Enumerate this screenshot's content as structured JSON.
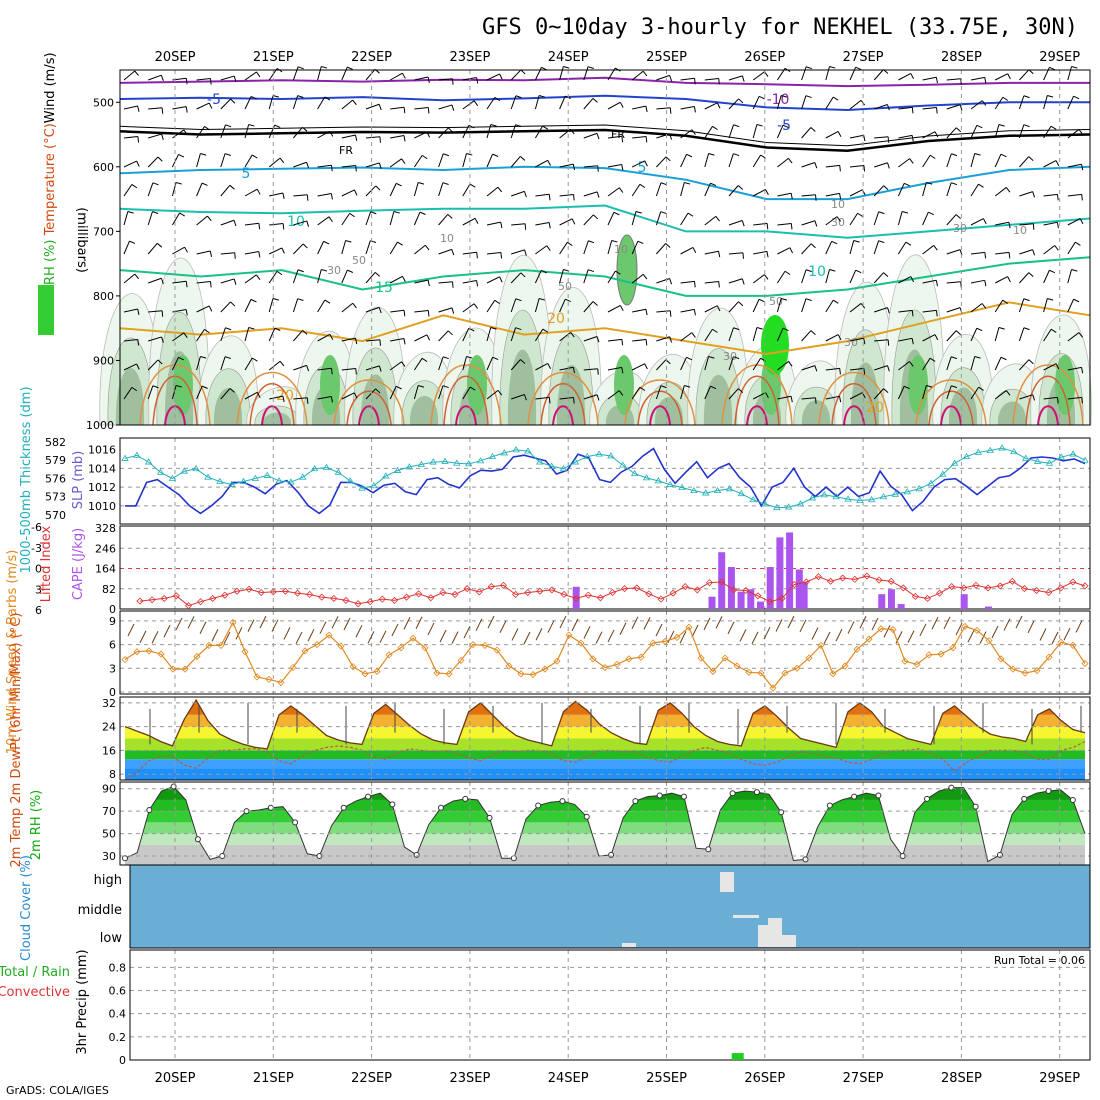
{
  "title": "GFS 0~10day 3-hourly for NEKHEL (33.75E, 30N)",
  "credit": "GrADS: COLA/IGES",
  "run_total_label": "Run Total = 0.06",
  "dates": [
    "20SEP",
    "21SEP",
    "22SEP",
    "23SEP",
    "24SEP",
    "25SEP",
    "26SEP",
    "27SEP",
    "28SEP",
    "29SEP"
  ],
  "colors": {
    "slp": "#2233cc",
    "thickness": "#22b0b8",
    "lifted": "#dd3333",
    "cape": "#aa55ee",
    "wind": "#e08a20",
    "rh": "#11aa11",
    "cloud": "#6aaed6",
    "cloudwhite": "#e6e6e6",
    "precip_green": "#22cc22",
    "purple_contour": "#8a22aa"
  },
  "chart_data": [
    {
      "id": "pressure_panel",
      "type": "contour",
      "yaxis_label_parts": [
        "RH (%)",
        "Temperature (°C)",
        "Wind (m/s)"
      ],
      "ylabel": "(millibars)",
      "yticks": [
        500,
        600,
        700,
        800,
        900,
        1000
      ],
      "ylim": [
        1000,
        450
      ],
      "temperature_contours": [
        {
          "label": "-10",
          "level": -10,
          "pressure": [
            470,
            468,
            466,
            468,
            465,
            466,
            462,
            470,
            472,
            475,
            473,
            470,
            470
          ]
        },
        {
          "label": "-5",
          "level": -5,
          "pressure": [
            495,
            493,
            495,
            492,
            497,
            494,
            490,
            495,
            508,
            512,
            505,
            500,
            500
          ]
        },
        {
          "label": "FR",
          "level": 0,
          "pressure": [
            545,
            550,
            548,
            546,
            547,
            545,
            543,
            552,
            570,
            575,
            560,
            552,
            550
          ]
        },
        {
          "label": "5",
          "level": 5,
          "pressure": [
            610,
            605,
            603,
            601,
            605,
            600,
            602,
            620,
            650,
            650,
            625,
            605,
            600
          ]
        },
        {
          "label": "10",
          "level": 10,
          "pressure": [
            665,
            670,
            672,
            668,
            665,
            665,
            660,
            700,
            700,
            710,
            700,
            690,
            680
          ]
        },
        {
          "label": "15",
          "level": 15,
          "pressure": [
            760,
            770,
            760,
            790,
            770,
            760,
            770,
            800,
            800,
            790,
            770,
            750,
            740
          ]
        },
        {
          "label": "20",
          "level": 20,
          "pressure": [
            850,
            860,
            850,
            870,
            830,
            860,
            850,
            870,
            890,
            870,
            840,
            810,
            830
          ]
        }
      ],
      "contour_labels": [
        "-10",
        "-5",
        "FR",
        "5",
        "10",
        "15",
        "20",
        "20",
        "20"
      ],
      "rh_labels": [
        "10",
        "30",
        "50",
        "10",
        "30",
        "30",
        "50",
        "50",
        "30",
        "10",
        "10",
        "30"
      ]
    },
    {
      "id": "slp_thickness",
      "type": "line",
      "left_label": "1000-500mb Thickness (dm)",
      "right_label": "SLP (mb)",
      "thickness_ticks": [
        570,
        573,
        576,
        579,
        582
      ],
      "slp_ticks": [
        1010,
        1012,
        1014,
        1016
      ],
      "ylim_slp": [
        1008.5,
        1016.8
      ],
      "series": [
        {
          "name": "SLP",
          "values": [
            1010,
            1010,
            1012.5,
            1012.8,
            1012,
            1011.2,
            1010,
            1009.2,
            1010,
            1011,
            1012.5,
            1012.5,
            1012,
            1011.3,
            1012.3,
            1012.7,
            1011.5,
            1010,
            1009.2,
            1010.1,
            1012.5,
            1012.5,
            1012.1,
            1011.4,
            1012.2,
            1012.4,
            1011.5,
            1011.2,
            1012.8,
            1013,
            1012.3,
            1011.9,
            1013.2,
            1013.8,
            1013.7,
            1013.9,
            1015.2,
            1015.4,
            1015.1,
            1014.8,
            1013.4,
            1013.8,
            1015.5,
            1015.1,
            1012.8,
            1012.5,
            1013.6,
            1014.2,
            1015.3,
            1016.1,
            1013.9,
            1012.4,
            1013.6,
            1014.7,
            1013,
            1014,
            1014.5,
            1013,
            1012,
            1010,
            1012,
            1012.5,
            1014,
            1012,
            1011,
            1012,
            1011,
            1012,
            1011,
            1011.4,
            1013.7,
            1012.1,
            1011.2,
            1009.5,
            1010.5,
            1012,
            1012.8,
            1012.9,
            1012.1,
            1011.2,
            1012.1,
            1013,
            1013.2,
            1014,
            1015.1,
            1015.2,
            1015.1,
            1014.8,
            1015,
            1014.5
          ]
        },
        {
          "name": "Thickness",
          "values": [
            579.3,
            579.8,
            578.7,
            577,
            576,
            577.2,
            577.6,
            576.2,
            575.5,
            575,
            575.5,
            576,
            576.5,
            575.6,
            575.4,
            576.2,
            577.6,
            577.8,
            577,
            575.6,
            574.4,
            574.8,
            576.4,
            577.3,
            577.9,
            578.3,
            578.7,
            578.8,
            578.5,
            578.4,
            578.9,
            579.6,
            580.2,
            580.7,
            580.5,
            578.7,
            578,
            577.6,
            578.7,
            579.6,
            580,
            579.7,
            578.2,
            576.8,
            576.1,
            575.6,
            575,
            574.5,
            574,
            573.6,
            574,
            574.3,
            573.5,
            572.5,
            571.8,
            571.2,
            571.3,
            571.8,
            572.8,
            573.3,
            573,
            572.6,
            572.4,
            572.5,
            573,
            573.4,
            573.8,
            574.3,
            575.2,
            576.7,
            578.5,
            579.6,
            580.3,
            580.6,
            581,
            580.4,
            579.3,
            578.8,
            578.5,
            579.5,
            580,
            579
          ]
        }
      ]
    },
    {
      "id": "lifted_cape",
      "type": "bar_line",
      "left_label": "Lifted Index",
      "right_label": "CAPE (J/kg)",
      "li_ticks": [
        "-6",
        "-3",
        "0",
        "3",
        "6"
      ],
      "cape_ticks": [
        0,
        82,
        164,
        246,
        328
      ],
      "cape_ylim": [
        0,
        328
      ],
      "li_ylim": [
        6,
        -6
      ],
      "cape_bars": [
        {
          "x": 4.6,
          "value": 90
        },
        {
          "x": 6.0,
          "value": 50
        },
        {
          "x": 6.1,
          "value": 230
        },
        {
          "x": 6.2,
          "value": 170
        },
        {
          "x": 6.3,
          "value": 70
        },
        {
          "x": 6.4,
          "value": 80
        },
        {
          "x": 6.5,
          "value": 30
        },
        {
          "x": 6.6,
          "value": 170
        },
        {
          "x": 6.7,
          "value": 290
        },
        {
          "x": 6.8,
          "value": 310
        },
        {
          "x": 6.9,
          "value": 160
        },
        {
          "x": 6.95,
          "value": 110
        },
        {
          "x": 7.75,
          "value": 60
        },
        {
          "x": 7.85,
          "value": 80
        },
        {
          "x": 7.95,
          "value": 20
        },
        {
          "x": 8.6,
          "value": 60
        },
        {
          "x": 8.85,
          "value": 10
        }
      ],
      "lifted_index": [
        5.1,
        4.9,
        4.7,
        4.3,
        5.8,
        5.2,
        4.7,
        4.2,
        3.6,
        3.3,
        3.8,
        3.7,
        3.6,
        3.9,
        4.1,
        4.5,
        4.7,
        5,
        5.5,
        5.2,
        4.8,
        5,
        4.5,
        4,
        4.6,
        3.8,
        4.1,
        3.2,
        3.7,
        2.9,
        2.7,
        4.1,
        3.8,
        3.6,
        3.4,
        4.1,
        4.7,
        4.2,
        4.6,
        3.8,
        3.2,
        3.1,
        4,
        4.8,
        3.9,
        2.9,
        3.4,
        2.3,
        2.2,
        3.4,
        3.5,
        4.3,
        5.2,
        4.7,
        2.6,
        2.2,
        1.4,
        2.1,
        1.6,
        1.8,
        1.3,
        1.9,
        2.1,
        3.1,
        4.4,
        4.7,
        3.9,
        2.9,
        3.1,
        2.7,
        3.1,
        2.8,
        2.1,
        3.2,
        3.5,
        3.8,
        3.1,
        2.2,
        2.8
      ]
    },
    {
      "id": "wind",
      "type": "line",
      "ylabel": "10m Wind Speed & Barbs (m/s)",
      "yticks": [
        0,
        3,
        6,
        9
      ],
      "ylim": [
        0,
        10
      ],
      "values": [
        4.1,
        5.1,
        5.2,
        4.8,
        2.9,
        2.9,
        4.5,
        5.9,
        5.9,
        8.8,
        5.1,
        1.9,
        1.6,
        1.2,
        3.1,
        5.2,
        6,
        7.2,
        5.8,
        3.2,
        2.3,
        2.6,
        4.7,
        5.6,
        6.8,
        5.6,
        2.4,
        2.3,
        4,
        6,
        5.9,
        5.3,
        3.3,
        2.3,
        2.2,
        2.9,
        3.9,
        7.2,
        6.2,
        4.2,
        3.1,
        3.5,
        4.2,
        4.4,
        6.2,
        6.4,
        6.9,
        8.2,
        4.3,
        2.6,
        4.3,
        3.3,
        2.5,
        2.4,
        0.5,
        2.4,
        3,
        4.3,
        5.9,
        2.3,
        3.3,
        5.4,
        6.7,
        8,
        7.9,
        3.9,
        3.5,
        4.7,
        4.8,
        5.6,
        8.3,
        7.8,
        6.5,
        4.2,
        2.9,
        2.4,
        2.7,
        4.4,
        6.3,
        5.9,
        3.6
      ]
    },
    {
      "id": "temperature",
      "type": "area_line",
      "ylabel": "2m Temp 2m DewPt (6hr Min/Max) (°C)",
      "yticks": [
        8,
        16,
        24,
        32
      ],
      "ylim": [
        6,
        34
      ],
      "temp_values": [
        24,
        22.5,
        21,
        19,
        17.5,
        26.5,
        33,
        26,
        21.5,
        19.5,
        18,
        17,
        16.5,
        28,
        31,
        28,
        24.5,
        21,
        19.5,
        18.5,
        18,
        28.5,
        31.5,
        28,
        24.5,
        21.5,
        19.5,
        18.5,
        18,
        29,
        32,
        28,
        24,
        21,
        19.5,
        18.5,
        17.5,
        29,
        32.5,
        29.5,
        25,
        22,
        20,
        18.5,
        18,
        29.5,
        32,
        28.5,
        24,
        21,
        19,
        18,
        17.5,
        28.5,
        31,
        27.5,
        23.5,
        20,
        19,
        18,
        17,
        29,
        32,
        29,
        24,
        22,
        20,
        19,
        18,
        28.5,
        31,
        27.5,
        24,
        21.5,
        20.5,
        20,
        19,
        28,
        30,
        26,
        23,
        22
      ],
      "dew_values": [
        6,
        8.5,
        12.5,
        14,
        14,
        11,
        10,
        13.5,
        16,
        16,
        16.5,
        16.5,
        15.5,
        12.5,
        11.5,
        14,
        16,
        17,
        17.5,
        17,
        16,
        14,
        13,
        15,
        16.5,
        16,
        15.5,
        16,
        15,
        13.5,
        12.5,
        14.5,
        16,
        15.5,
        16,
        16,
        15,
        12.5,
        12,
        14,
        16,
        16,
        15.5,
        15.5,
        14,
        12.5,
        12,
        14,
        16,
        17,
        16,
        15,
        13,
        11.5,
        11,
        12,
        14,
        15.5,
        15,
        14,
        13.5,
        12,
        11.5,
        13,
        15,
        16,
        16,
        16.5,
        15,
        13,
        9,
        12,
        14,
        16,
        16,
        16,
        15,
        13,
        13,
        16,
        17,
        19
      ]
    },
    {
      "id": "rh",
      "type": "area",
      "ylabel": "2m RH (%)",
      "yticks": [
        30,
        50,
        70,
        90
      ],
      "ylim": [
        22,
        96
      ],
      "values": [
        28,
        33,
        71,
        88,
        92,
        80,
        45,
        27,
        30,
        60,
        70,
        71,
        73,
        74,
        60,
        32,
        30,
        57,
        73,
        79,
        83,
        86,
        76,
        38,
        31,
        58,
        73,
        79,
        81,
        80,
        64,
        28,
        28,
        63,
        75,
        78,
        79,
        76,
        65,
        30,
        31,
        64,
        79,
        83,
        84,
        86,
        83,
        37,
        36,
        71,
        86,
        88,
        87,
        85,
        69,
        26,
        27,
        56,
        75,
        80,
        83,
        86,
        84,
        45,
        30,
        69,
        81,
        88,
        91,
        91,
        74,
        25,
        31,
        67,
        81,
        86,
        88,
        89,
        80,
        50
      ]
    },
    {
      "id": "cloud",
      "type": "cloud",
      "ylabel": "Cloud Cover (%)",
      "levels": [
        "high",
        "middle",
        "low"
      ]
    },
    {
      "id": "precip",
      "type": "bar",
      "ylabel": "3hr Precip (mm)",
      "left_label_lines": [
        "Total / Rain",
        "Convective"
      ],
      "yticks": [
        "0",
        "0.2",
        "0.4",
        "0.6",
        "0.8"
      ],
      "ylim": [
        0,
        0.95
      ],
      "bars": [
        {
          "x": 6.1,
          "value": 0.06
        }
      ]
    }
  ]
}
